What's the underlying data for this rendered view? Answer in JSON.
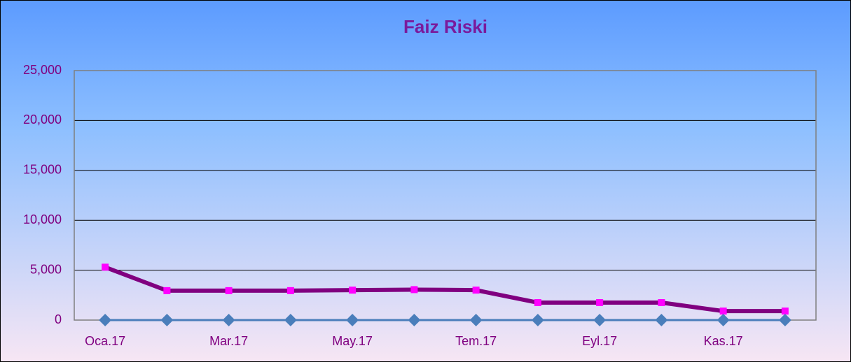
{
  "chart_data": {
    "type": "line",
    "title": "Faiz Riski",
    "categories": [
      "Oca.17",
      null,
      "Mar.17",
      null,
      "May.17",
      null,
      "Tem.17",
      null,
      "Eyl.17",
      null,
      "Kas.17",
      null
    ],
    "series": [
      {
        "color": "#800080",
        "marker_color": "#ff00ff",
        "marker": "square",
        "values": [
          5300,
          2950,
          2950,
          2950,
          3000,
          3050,
          3000,
          1750,
          1750,
          1750,
          900,
          900
        ]
      },
      {
        "color": "#4a7ebb",
        "marker_color": "#4a7ebb",
        "marker": "diamond",
        "values": [
          0,
          0,
          0,
          0,
          0,
          0,
          0,
          0,
          0,
          0,
          0,
          0
        ]
      }
    ],
    "ylim": [
      0,
      25000
    ],
    "yticks": [
      0,
      {
        "value": 5000,
        "label": "5,000"
      },
      {
        "value": 10000,
        "label": "10,000"
      },
      {
        "value": 15000,
        "label": "15,000"
      },
      {
        "value": 20000,
        "label": "20,000"
      },
      {
        "value": 25000,
        "label": "25,000"
      }
    ],
    "grid": true
  }
}
